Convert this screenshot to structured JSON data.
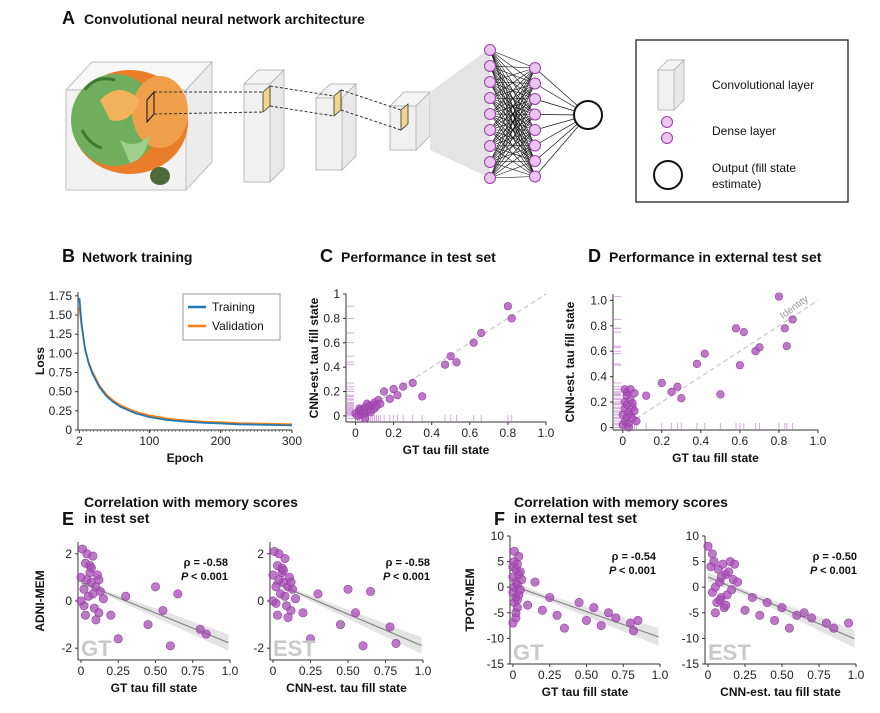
{
  "panelA": {
    "letter": "A",
    "title": "Convolutional neural network architecture",
    "legend": {
      "conv": "Convolutional layer",
      "dense": "Dense layer",
      "output_l1": "Output (fill state",
      "output_l2": "estimate)"
    },
    "colors": {
      "neuron_fill": "#e9c6ee",
      "neuron_stroke": "#a03aad",
      "filter": "#f3d58a"
    }
  },
  "panelB": {
    "letter": "B",
    "title": "Network training"
  },
  "panelC": {
    "letter": "C",
    "title": "Performance in test set"
  },
  "panelD": {
    "letter": "D",
    "title": "Performance in external test set"
  },
  "panelE": {
    "letter": "E",
    "title_l1": "Correlation with memory scores",
    "title_l2": "in test set"
  },
  "panelF": {
    "letter": "F",
    "title_l1": "Correlation with memory scores",
    "title_l2": "in external test set"
  },
  "colors": {
    "point": "#9a3aa8",
    "point_fill": "#a54db3",
    "identity": "#c7c7c7",
    "training": "#1f77b4",
    "validation": "#ff7f0e",
    "rug": "#d8a8e0",
    "ci_band": "#d9d9d9"
  },
  "chart_data": [
    {
      "id": "B",
      "type": "line",
      "xlabel": "Epoch",
      "ylabel": "Loss",
      "xticks": [
        2,
        100,
        200,
        300
      ],
      "yticks": [
        0,
        0.25,
        0.5,
        0.75,
        1.0,
        1.25,
        1.5,
        1.75
      ],
      "ytick_labels": [
        "0",
        "0.25",
        "0.50",
        "0.75",
        "1.00",
        "1.25",
        "1.50",
        "1.75"
      ],
      "xlim": [
        0,
        300
      ],
      "ylim": [
        0,
        1.8
      ],
      "legend_position": "top-right",
      "series": [
        {
          "name": "Training",
          "x": [
            2,
            5,
            10,
            15,
            20,
            30,
            40,
            50,
            60,
            80,
            100,
            125,
            150,
            175,
            200,
            225,
            250,
            275,
            300
          ],
          "y": [
            1.72,
            1.38,
            1.05,
            0.87,
            0.74,
            0.56,
            0.44,
            0.36,
            0.3,
            0.22,
            0.17,
            0.13,
            0.11,
            0.095,
            0.085,
            0.075,
            0.07,
            0.065,
            0.06
          ]
        },
        {
          "name": "Validation",
          "x": [
            2,
            5,
            10,
            15,
            20,
            30,
            40,
            50,
            60,
            80,
            100,
            125,
            150,
            175,
            200,
            225,
            250,
            275,
            300
          ],
          "y": [
            1.6,
            1.36,
            1.06,
            0.88,
            0.76,
            0.58,
            0.46,
            0.38,
            0.32,
            0.24,
            0.19,
            0.15,
            0.125,
            0.11,
            0.1,
            0.09,
            0.085,
            0.08,
            0.075
          ]
        }
      ]
    },
    {
      "id": "C",
      "type": "scatter",
      "xlabel": "GT tau fill state",
      "ylabel": "CNN-est. tau fill state",
      "xticks": [
        0,
        0.2,
        0.4,
        0.6,
        0.8,
        1.0
      ],
      "xtick_labels": [
        "0",
        "0.2",
        "0.4",
        "0.6",
        "0.8",
        "1.0"
      ],
      "yticks": [
        0,
        0.2,
        0.4,
        0.6,
        0.8,
        1.0
      ],
      "ytick_labels": [
        "0",
        "0.2",
        "0.4",
        "0.6",
        "0.8",
        "1"
      ],
      "xlim": [
        -0.05,
        1.0
      ],
      "ylim": [
        -0.05,
        1.0
      ],
      "identity_line": true,
      "x": [
        0.0,
        0.01,
        0.02,
        0.02,
        0.03,
        0.03,
        0.04,
        0.05,
        0.05,
        0.06,
        0.06,
        0.07,
        0.08,
        0.09,
        0.1,
        0.1,
        0.12,
        0.13,
        0.15,
        0.18,
        0.2,
        0.22,
        0.25,
        0.3,
        0.35,
        0.47,
        0.5,
        0.53,
        0.62,
        0.66,
        0.8,
        0.82,
        0.05,
        0.08,
        0.11
      ],
      "y": [
        0.02,
        0.0,
        0.04,
        0.06,
        0.01,
        0.05,
        0.03,
        0.07,
        0.02,
        0.1,
        0.04,
        0.08,
        0.05,
        0.09,
        0.11,
        0.06,
        0.13,
        0.1,
        0.2,
        0.14,
        0.22,
        0.17,
        0.24,
        0.27,
        0.16,
        0.42,
        0.49,
        0.44,
        0.6,
        0.68,
        0.9,
        0.8,
        -0.02,
        0.03,
        0.08
      ]
    },
    {
      "id": "D",
      "type": "scatter",
      "xlabel": "GT tau fill state",
      "ylabel": "CNN-est. tau fill state",
      "xticks": [
        0,
        0.2,
        0.4,
        0.6,
        0.8,
        1.0
      ],
      "xtick_labels": [
        "0",
        "0.2",
        "0.4",
        "0.6",
        "0.8",
        "1.0"
      ],
      "yticks": [
        0,
        0.2,
        0.4,
        0.6,
        0.8,
        1.0
      ],
      "ytick_labels": [
        "0",
        "0.2",
        "0.4",
        "0.6",
        "0.8",
        "1.0"
      ],
      "xlim": [
        -0.05,
        1.0
      ],
      "ylim": [
        -0.02,
        1.05
      ],
      "identity_line": true,
      "identity_label": "Identity",
      "x": [
        0.0,
        0.0,
        0.01,
        0.01,
        0.01,
        0.02,
        0.02,
        0.02,
        0.03,
        0.03,
        0.04,
        0.04,
        0.05,
        0.05,
        0.06,
        0.07,
        0.02,
        0.01,
        0.03,
        0.05,
        0.12,
        0.2,
        0.25,
        0.28,
        0.3,
        0.38,
        0.42,
        0.5,
        0.58,
        0.6,
        0.62,
        0.68,
        0.7,
        0.8,
        0.83,
        0.84,
        0.87,
        0.04,
        0.06
      ],
      "y": [
        0.02,
        0.1,
        0.2,
        0.05,
        0.15,
        0.25,
        0.08,
        0.18,
        0.12,
        0.03,
        0.22,
        0.1,
        0.16,
        0.07,
        0.13,
        0.05,
        0.28,
        0.3,
        0.0,
        0.19,
        0.25,
        0.35,
        0.28,
        0.32,
        0.23,
        0.5,
        0.58,
        0.26,
        0.78,
        0.49,
        0.75,
        0.6,
        0.63,
        1.03,
        0.78,
        0.64,
        0.85,
        0.3,
        0.27
      ]
    },
    {
      "id": "E1",
      "type": "scatter",
      "regression_line": true,
      "xlabel": "GT tau fill state",
      "ylabel": "ADNI-MEM",
      "watermark": "GT",
      "rho": "ρ = -0.58",
      "p": "< 0.001",
      "p_label": "P",
      "xticks": [
        0,
        0.25,
        0.5,
        0.75,
        1.0
      ],
      "xtick_labels": [
        "0",
        "0.25",
        "0.50",
        "0.75",
        "1.0"
      ],
      "yticks": [
        -2,
        0,
        2
      ],
      "ytick_labels": [
        "-2",
        "0",
        "2"
      ],
      "xlim": [
        -0.02,
        1.0
      ],
      "ylim": [
        -2.5,
        2.5
      ],
      "x": [
        0.0,
        0.01,
        0.02,
        0.03,
        0.04,
        0.05,
        0.06,
        0.07,
        0.08,
        0.09,
        0.1,
        0.11,
        0.12,
        0.13,
        0.02,
        0.04,
        0.06,
        0.08,
        0.1,
        0.15,
        0.2,
        0.25,
        0.3,
        0.45,
        0.5,
        0.55,
        0.6,
        0.65,
        0.8,
        0.84,
        0.0,
        0.03,
        0.07,
        0.12
      ],
      "y": [
        1.0,
        2.2,
        0.5,
        1.6,
        2.0,
        0.2,
        1.2,
        0.8,
        1.9,
        -0.3,
        0.6,
        1.1,
        -0.5,
        0.4,
        -0.2,
        0.9,
        1.5,
        0.3,
        -0.8,
        0.1,
        -0.6,
        -1.6,
        0.2,
        -1.0,
        0.6,
        -0.4,
        -1.9,
        0.3,
        -1.2,
        -1.4,
        0.0,
        -0.6,
        1.4,
        0.9
      ]
    },
    {
      "id": "E2",
      "type": "scatter",
      "regression_line": true,
      "xlabel": "CNN-est. tau fill state",
      "ylabel": "",
      "watermark": "EST",
      "rho": "ρ = -0.58",
      "p": "< 0.001",
      "p_label": "P",
      "xticks": [
        0,
        0.25,
        0.5,
        0.75,
        1.0
      ],
      "xtick_labels": [
        "0",
        "0.25",
        "0.50",
        "0.75",
        "1.0"
      ],
      "yticks": [
        -2,
        0,
        2
      ],
      "ytick_labels": [
        "-2",
        "0",
        "2"
      ],
      "xlim": [
        -0.02,
        1.0
      ],
      "ylim": [
        -2.5,
        2.5
      ],
      "x": [
        0.0,
        0.01,
        0.02,
        0.03,
        0.04,
        0.05,
        0.06,
        0.07,
        0.08,
        0.09,
        0.1,
        0.11,
        0.12,
        0.13,
        0.02,
        0.04,
        0.06,
        0.08,
        0.1,
        0.15,
        0.2,
        0.25,
        0.3,
        0.45,
        0.5,
        0.55,
        0.6,
        0.65,
        0.78,
        0.82,
        0.0,
        0.03,
        0.07,
        0.12
      ],
      "y": [
        1.1,
        2.1,
        0.6,
        1.5,
        2.0,
        0.3,
        1.2,
        0.8,
        1.8,
        -0.2,
        0.6,
        1.0,
        -0.4,
        0.5,
        -0.1,
        0.9,
        1.4,
        0.2,
        -0.7,
        0.1,
        -0.5,
        -1.6,
        0.3,
        -1.0,
        0.5,
        -0.5,
        -1.9,
        0.4,
        -1.1,
        -1.8,
        0.0,
        -0.6,
        1.3,
        0.8
      ]
    },
    {
      "id": "F1",
      "type": "scatter",
      "regression_line": true,
      "xlabel": "GT tau fill state",
      "ylabel": "TPOT-MEM",
      "watermark": "GT",
      "rho": "ρ = -0.54",
      "p": "< 0.001",
      "p_label": "P",
      "xticks": [
        0,
        0.25,
        0.5,
        0.75,
        1.0
      ],
      "xtick_labels": [
        "0",
        "0.25",
        "0.50",
        "0.75",
        "1.0"
      ],
      "yticks": [
        -15,
        -10,
        -5,
        0,
        5,
        10
      ],
      "ytick_labels": [
        "-15",
        "-10",
        "-5",
        "0",
        "5",
        "10"
      ],
      "xlim": [
        -0.02,
        1.0
      ],
      "ylim": [
        -15,
        10
      ],
      "x": [
        0.0,
        0.0,
        0.0,
        0.01,
        0.01,
        0.01,
        0.02,
        0.02,
        0.02,
        0.02,
        0.03,
        0.03,
        0.03,
        0.04,
        0.04,
        0.05,
        0.05,
        0.06,
        0.01,
        0.02,
        0.03,
        0.0,
        0.04,
        0.1,
        0.15,
        0.2,
        0.25,
        0.3,
        0.35,
        0.45,
        0.5,
        0.55,
        0.6,
        0.65,
        0.7,
        0.8,
        0.82,
        0.85
      ],
      "y": [
        4.0,
        2.0,
        -1.0,
        5.0,
        0.0,
        -3.0,
        3.5,
        1.0,
        -2.0,
        -6.0,
        4.5,
        0.5,
        -4.0,
        2.5,
        -1.5,
        3.0,
        -0.5,
        1.5,
        7.0,
        -5.0,
        -2.5,
        -7.0,
        6.0,
        -3.5,
        1.0,
        -4.5,
        -2.0,
        -5.5,
        -8.0,
        -3.0,
        -6.5,
        -4.0,
        -7.5,
        -5.0,
        -6.0,
        -7.0,
        -8.5,
        -6.5
      ]
    },
    {
      "id": "F2",
      "type": "scatter",
      "regression_line": true,
      "xlabel": "CNN-est. tau fill state",
      "ylabel": "",
      "watermark": "EST",
      "rho": "ρ = -0.50",
      "p": "< 0.001",
      "p_label": "P",
      "xticks": [
        0,
        0.25,
        0.5,
        0.75,
        1.0
      ],
      "xtick_labels": [
        "0",
        "0.25",
        "0.50",
        "0.75",
        "1.0"
      ],
      "yticks": [
        -15,
        -10,
        -5,
        0,
        5,
        10
      ],
      "ytick_labels": [
        "-15",
        "-10",
        "-5",
        "0",
        "5",
        "10"
      ],
      "xlim": [
        -0.02,
        1.0
      ],
      "ylim": [
        -15,
        10
      ],
      "x": [
        0.0,
        0.02,
        0.03,
        0.04,
        0.05,
        0.06,
        0.07,
        0.08,
        0.09,
        0.1,
        0.11,
        0.12,
        0.13,
        0.14,
        0.15,
        0.16,
        0.17,
        0.18,
        0.05,
        0.08,
        0.12,
        0.2,
        0.25,
        0.3,
        0.35,
        0.4,
        0.45,
        0.5,
        0.55,
        0.6,
        0.65,
        0.7,
        0.8,
        0.85,
        0.95,
        0.03,
        0.09
      ],
      "y": [
        8.0,
        4.0,
        -1.0,
        5.0,
        0.0,
        -3.0,
        3.5,
        1.0,
        -2.0,
        4.5,
        -4.0,
        2.5,
        -1.5,
        3.0,
        5.0,
        -0.5,
        1.5,
        4.5,
        -5.0,
        -2.5,
        -3.5,
        1.0,
        -4.5,
        -2.0,
        -5.5,
        -3.0,
        -6.5,
        -4.0,
        -8.0,
        -5.5,
        -5.0,
        -6.0,
        -7.0,
        -8.0,
        -7.0,
        6.5,
        2.0
      ]
    }
  ]
}
